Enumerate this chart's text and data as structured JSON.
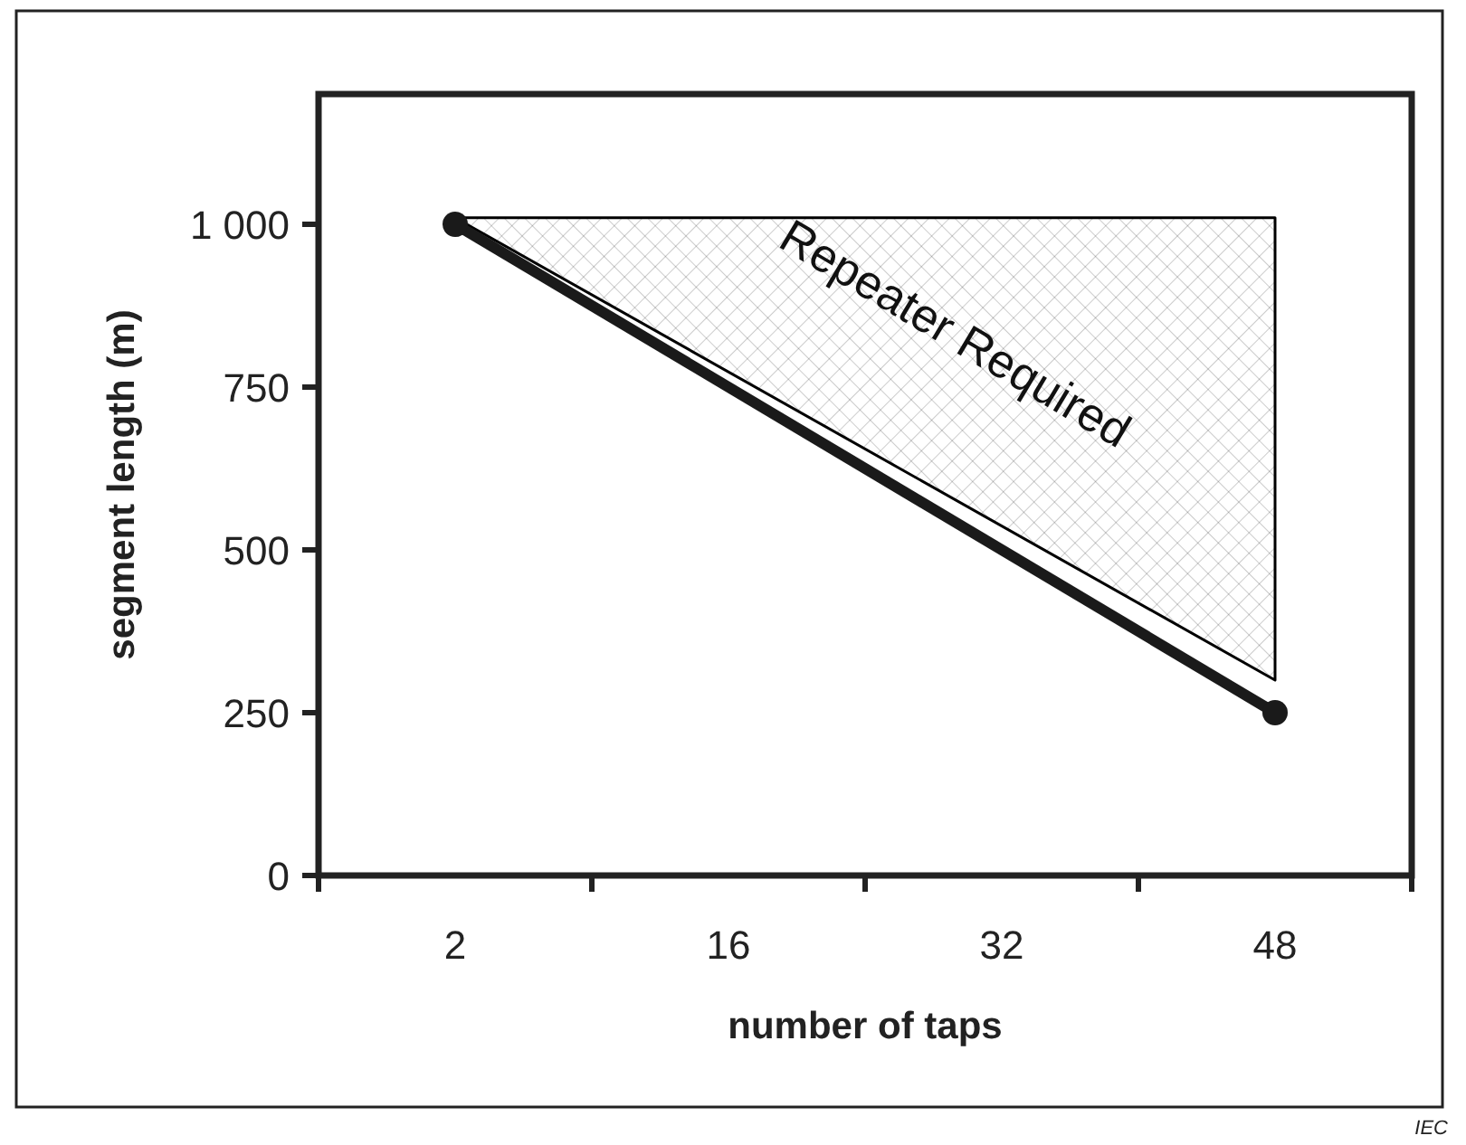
{
  "chart_data": {
    "type": "line",
    "xlabel": "number of taps",
    "ylabel": "segment length (m)",
    "categories": [
      "2",
      "16",
      "32",
      "48"
    ],
    "ylim": [
      0,
      1200
    ],
    "yticks": [
      0,
      250,
      500,
      750,
      {
        "value": 1000,
        "label": "1 000"
      }
    ],
    "series": [
      {
        "type": "area",
        "color": "#000000",
        "x": [
          "2",
          "48"
        ],
        "values": [
          1010,
          300
        ]
      },
      {
        "color": "#1a1a1a",
        "x": [
          "2",
          "48"
        ],
        "values": [
          1000,
          250
        ],
        "marker": "circle"
      }
    ],
    "annotations": [
      "Repeater Required",
      "IEC"
    ],
    "grid": false
  }
}
